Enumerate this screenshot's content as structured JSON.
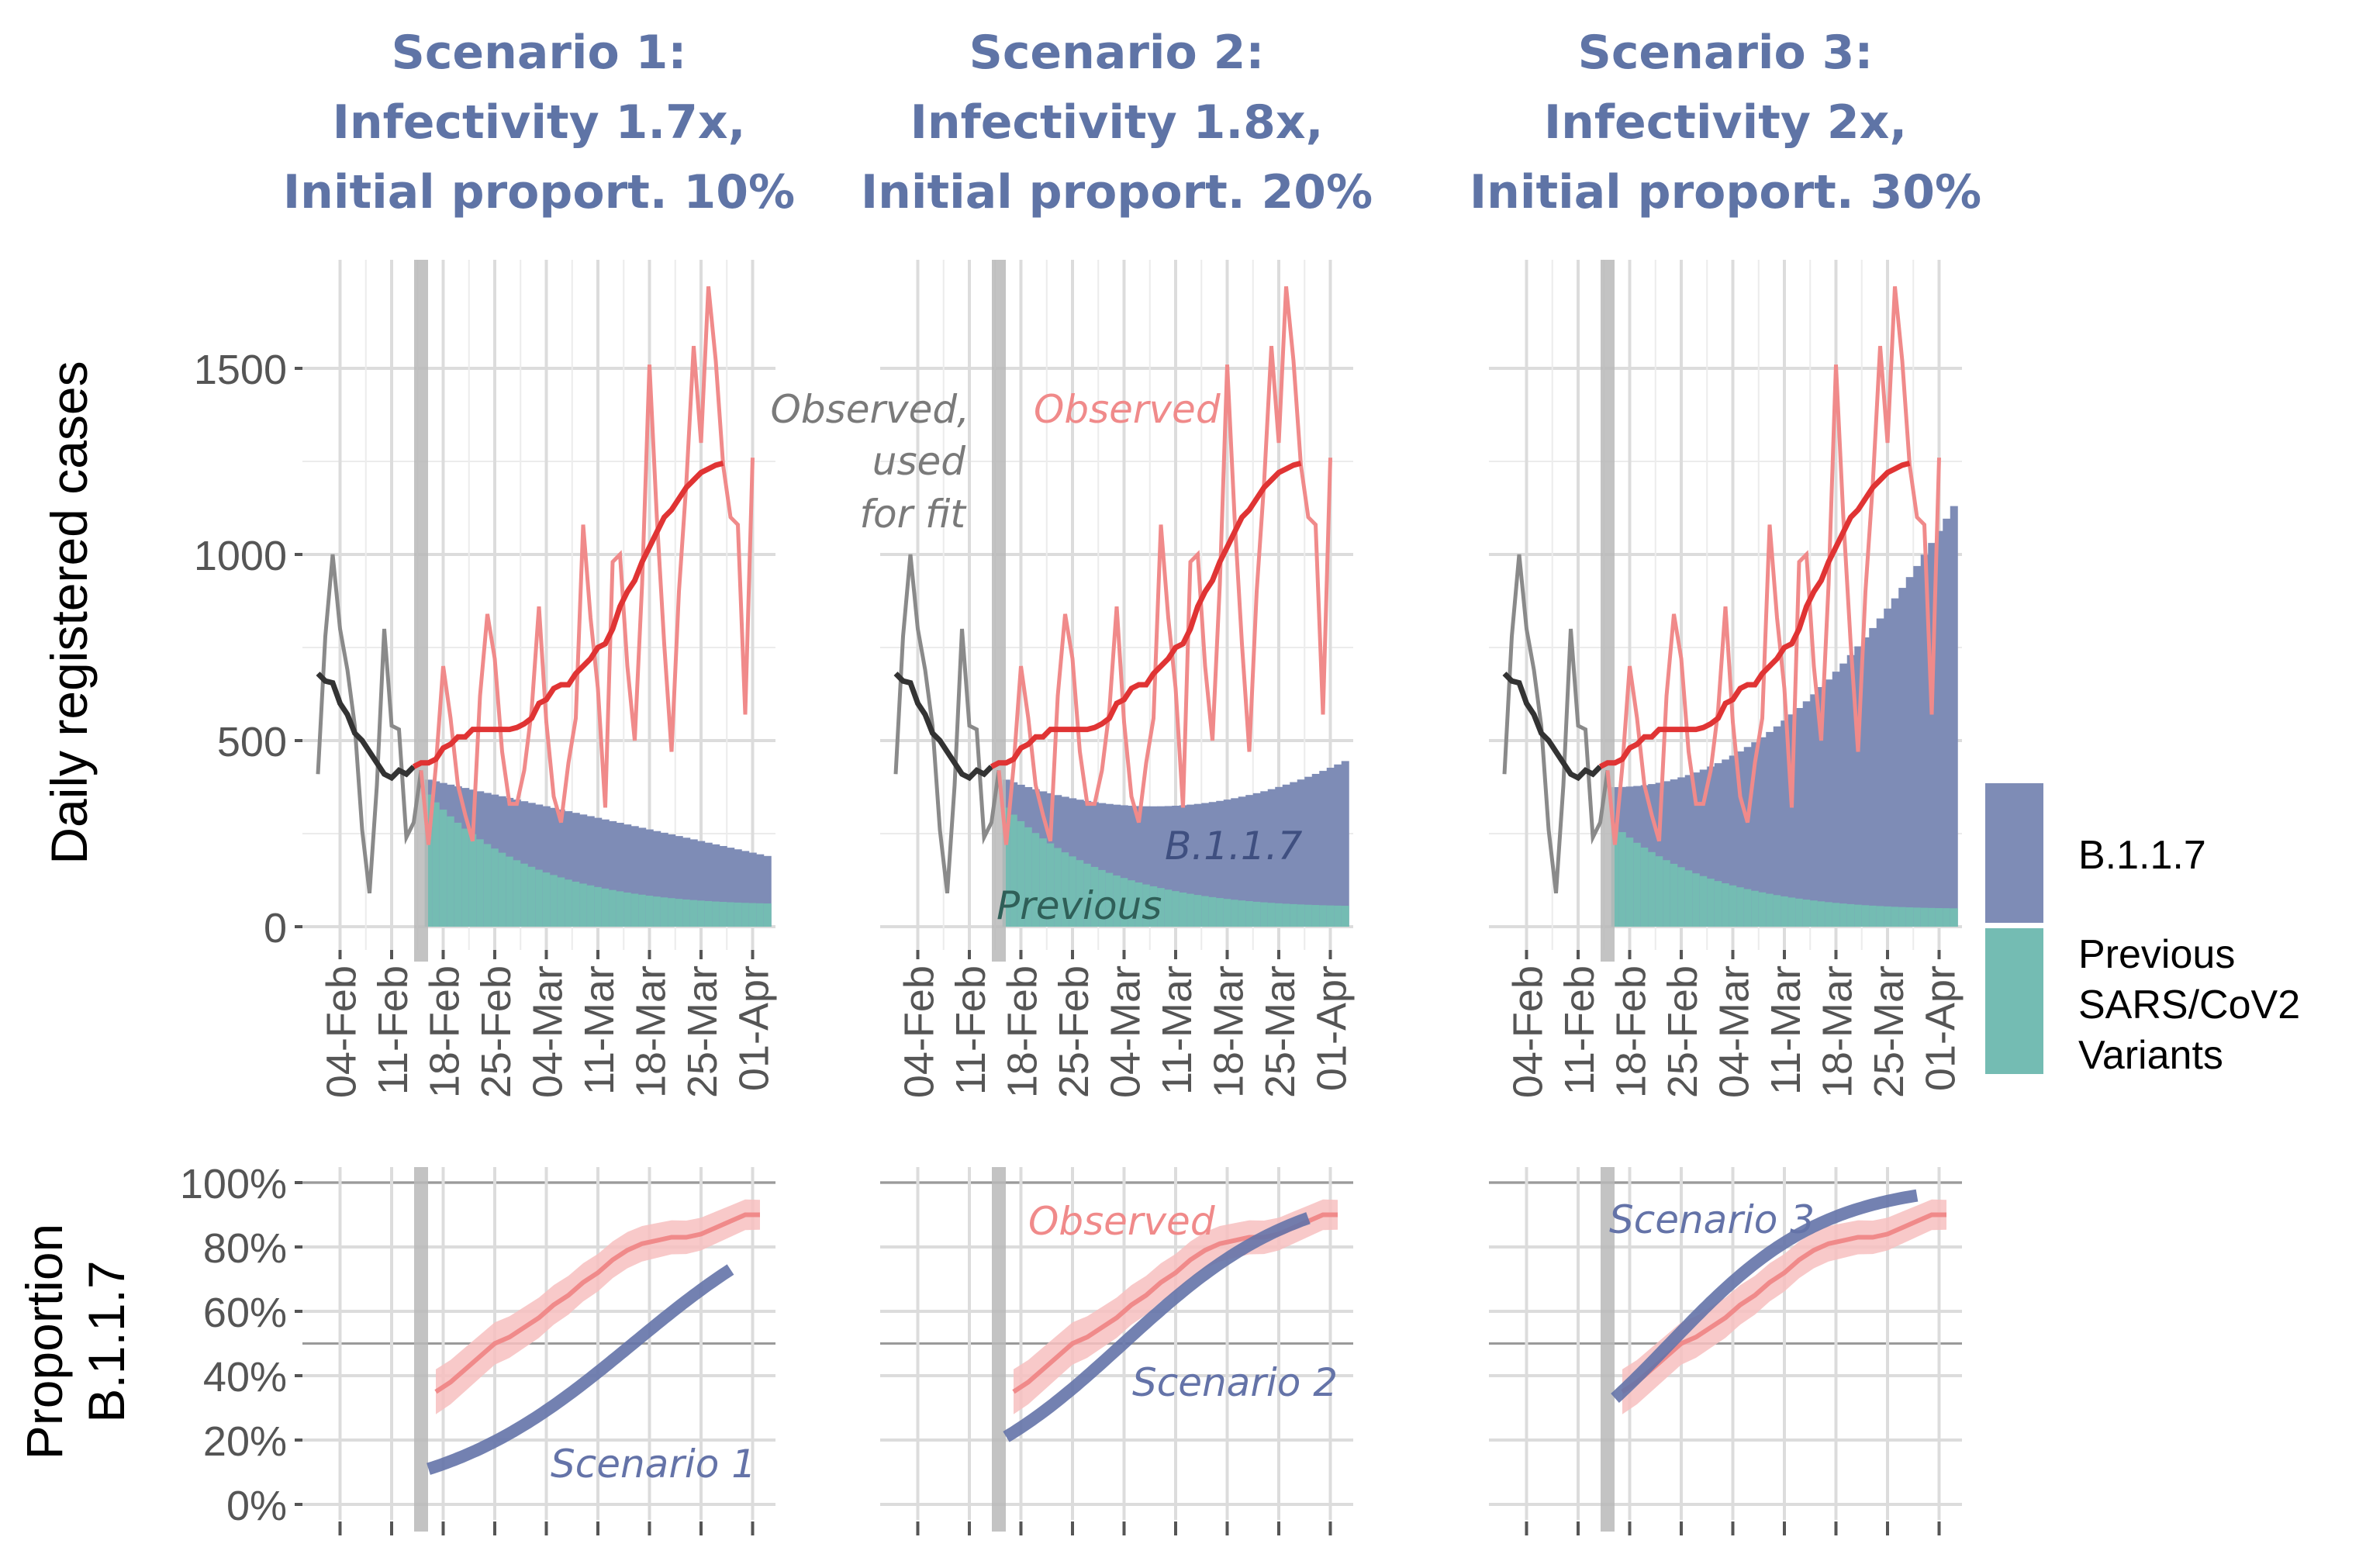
{
  "figure": {
    "ylabel_top": "Daily registered cases",
    "ylabel_bottom_line1": "Proportion",
    "ylabel_bottom_line2": "B.1.1.7",
    "x_tick_labels": [
      "04-Feb",
      "11-Feb",
      "18-Feb",
      "25-Feb",
      "04-Mar",
      "11-Mar",
      "18-Mar",
      "25-Mar",
      "01-Apr"
    ],
    "y_ticks_top": [
      "0",
      "500",
      "1000",
      "1500"
    ],
    "y_ticks_bottom": [
      "0%",
      "20%",
      "40%",
      "60%",
      "80%",
      "100%"
    ]
  },
  "legend": {
    "items": [
      {
        "label": "B.1.1.7",
        "color": "#7e8cb6"
      },
      {
        "label_line1": "Previous",
        "label_line2": "SARS/CoV2",
        "label_line3": "Variants",
        "color": "#74bcb3"
      }
    ]
  },
  "annotations": {
    "observed_fit": [
      "Observed,",
      "used",
      "for fit"
    ],
    "observed": "Observed",
    "b117": "B.1.1.7",
    "previous": "Previous"
  },
  "colors": {
    "title": "#5f74a6",
    "b117_fill": "#7e8cb6",
    "previous_fill": "#74bcb3",
    "observed_daily": "#f08a8a",
    "observed_avg": "#e03434",
    "fit_daily": "#8a8a8a",
    "fit_avg": "#333333",
    "scenario_line": "#6473a8",
    "ci_band": "#f7c0c0",
    "vline": "#b8b8b8"
  },
  "chart_data": [
    {
      "type": "area",
      "panel": "scenario-1",
      "title_line1": "Scenario 1:",
      "title_line2": "Infectivity 1.7x,",
      "title_line3": "Initial proport. 10%",
      "scenario_label": "Scenario 1",
      "xlabel": "",
      "ylabel": "Daily registered cases",
      "x_range": [
        "01-Feb",
        "02-Apr"
      ],
      "ylim": [
        0,
        1800
      ],
      "split_date": "15-Feb",
      "b117_total_start": 395,
      "b117_total_end": 190,
      "b117_total_min": 190,
      "previous_start": 355,
      "previous_end": 50,
      "proportion_start": 0.11,
      "proportion_end": 0.73
    },
    {
      "type": "area",
      "panel": "scenario-2",
      "title_line1": "Scenario 2:",
      "title_line2": "Infectivity 1.8x,",
      "title_line3": "Initial proport. 20%",
      "scenario_label": "Scenario 2",
      "xlabel": "",
      "ylabel": "",
      "x_range": [
        "01-Feb",
        "02-Apr"
      ],
      "ylim": [
        0,
        1800
      ],
      "split_date": "15-Feb",
      "b117_total_start": 395,
      "b117_total_end": 445,
      "b117_total_min": 300,
      "previous_start": 320,
      "previous_end": 45,
      "proportion_start": 0.21,
      "proportion_end": 0.89
    },
    {
      "type": "area",
      "panel": "scenario-3",
      "title_line1": "Scenario 3:",
      "title_line2": "Infectivity 2x,",
      "title_line3": "Initial proport. 30%",
      "scenario_label": "Scenario 3",
      "xlabel": "",
      "ylabel": "",
      "x_range": [
        "01-Feb",
        "02-Apr"
      ],
      "ylim": [
        0,
        1800
      ],
      "split_date": "15-Feb",
      "b117_total_start": 395,
      "b117_total_end": 1130,
      "b117_total_min": 385,
      "previous_start": 270,
      "previous_end": 40,
      "proportion_start": 0.33,
      "proportion_end": 0.96
    },
    {
      "type": "line",
      "name": "observed-cases",
      "dates": [
        "01-Feb",
        "02-Feb",
        "03-Feb",
        "04-Feb",
        "05-Feb",
        "06-Feb",
        "07-Feb",
        "08-Feb",
        "09-Feb",
        "10-Feb",
        "11-Feb",
        "12-Feb",
        "13-Feb",
        "14-Feb",
        "15-Feb",
        "16-Feb",
        "17-Feb",
        "18-Feb",
        "19-Feb",
        "20-Feb",
        "21-Feb",
        "22-Feb",
        "23-Feb",
        "24-Feb",
        "25-Feb",
        "26-Feb",
        "27-Feb",
        "28-Feb",
        "01-Mar",
        "02-Mar",
        "03-Mar",
        "04-Mar",
        "05-Mar",
        "06-Mar",
        "07-Mar",
        "08-Mar",
        "09-Mar",
        "10-Mar",
        "11-Mar",
        "12-Mar",
        "13-Mar",
        "14-Mar",
        "15-Mar",
        "16-Mar",
        "17-Mar",
        "18-Mar",
        "19-Mar",
        "20-Mar",
        "21-Mar",
        "22-Mar",
        "23-Mar",
        "24-Mar",
        "25-Mar",
        "26-Mar",
        "27-Mar",
        "28-Mar",
        "29-Mar",
        "30-Mar",
        "31-Mar",
        "01-Apr"
      ],
      "daily": [
        410,
        780,
        1000,
        800,
        690,
        540,
        260,
        90,
        380,
        800,
        540,
        530,
        240,
        280,
        420,
        220,
        430,
        700,
        560,
        380,
        300,
        230,
        620,
        840,
        720,
        470,
        330,
        330,
        420,
        580,
        860,
        550,
        350,
        280,
        440,
        560,
        1080,
        830,
        640,
        320,
        980,
        1000,
        700,
        500,
        920,
        1510,
        1100,
        760,
        470,
        900,
        1190,
        1560,
        1300,
        1720,
        1520,
        1240,
        1100,
        1080,
        570,
        1260
      ],
      "avg_7day": [
        680,
        660,
        655,
        600,
        570,
        520,
        500,
        470,
        440,
        410,
        400,
        420,
        410,
        430,
        440,
        440,
        450,
        480,
        490,
        510,
        510,
        530,
        530,
        530,
        530,
        530,
        530,
        535,
        545,
        560,
        600,
        610,
        640,
        650,
        650,
        680,
        700,
        720,
        750,
        760,
        800,
        860,
        900,
        930,
        980,
        1020,
        1060,
        1100,
        1120,
        1150,
        1180,
        1200,
        1220,
        1230,
        1240,
        1245
      ],
      "fit_until": "15-Feb",
      "avg_end": "26-Mar"
    },
    {
      "type": "line",
      "name": "observed-proportion",
      "dates": [
        "17-Feb",
        "19-Feb",
        "21-Feb",
        "23-Feb",
        "25-Feb",
        "27-Feb",
        "01-Mar",
        "03-Mar",
        "05-Mar",
        "07-Mar",
        "09-Mar",
        "11-Mar",
        "13-Mar",
        "15-Mar",
        "17-Mar",
        "19-Mar",
        "21-Mar",
        "23-Mar",
        "25-Mar",
        "27-Mar",
        "29-Mar",
        "31-Mar",
        "02-Apr"
      ],
      "values": [
        0.35,
        0.38,
        0.42,
        0.46,
        0.5,
        0.52,
        0.55,
        0.58,
        0.62,
        0.65,
        0.69,
        0.72,
        0.76,
        0.79,
        0.81,
        0.82,
        0.83,
        0.83,
        0.84,
        0.86,
        0.88,
        0.9,
        0.9
      ],
      "ci_halfwidth": 0.07
    }
  ]
}
